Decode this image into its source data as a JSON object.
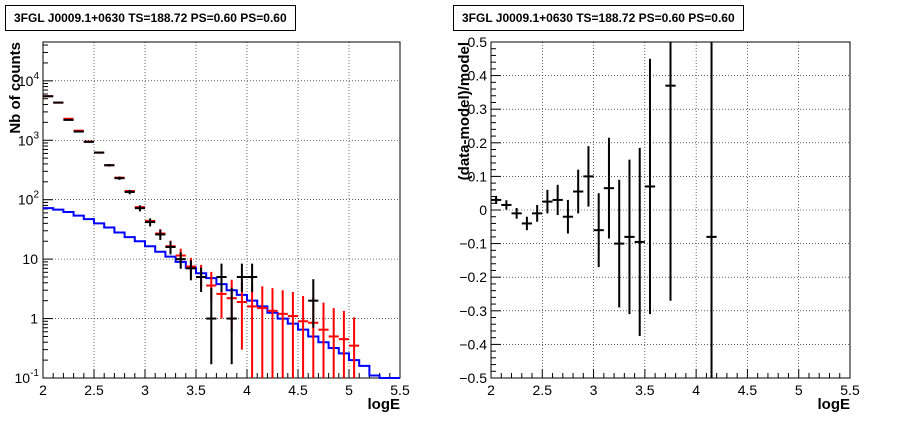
{
  "chart_data": [
    {
      "type": "line",
      "title": "3FGL J0009.1+0630 TS=188.72 PS=0.60 PS=0.60",
      "xlabel": "logE",
      "ylabel": "Nb of counts",
      "xlim": [
        2,
        5.5
      ],
      "ylim": [
        0.1,
        45000
      ],
      "yscale": "log",
      "grid": true,
      "xticks": [
        "2",
        "2.5",
        "3",
        "3.5",
        "4",
        "4.5",
        "5",
        "5.5"
      ],
      "yticks": [
        "10^-1",
        "1",
        "10",
        "10^2",
        "10^3",
        "10^4"
      ],
      "series": [
        {
          "kind": "red-model-histogram",
          "color": "#ff0000",
          "x": [
            2.05,
            2.15,
            2.25,
            2.35,
            2.45,
            2.55,
            2.65,
            2.75,
            2.85,
            2.95,
            3.05,
            3.15,
            3.25,
            3.35,
            3.45,
            3.55,
            3.65,
            3.75,
            3.85,
            3.95,
            4.05,
            4.15,
            4.25,
            4.35,
            4.45,
            4.55,
            4.65,
            4.75,
            4.85,
            4.95,
            5.05
          ],
          "y": [
            5500,
            4300,
            2300,
            1450,
            950,
            620,
            380,
            235,
            140,
            75,
            44,
            27,
            16.5,
            11.5,
            7.5,
            5.0,
            3.6,
            2.6,
            2.2,
            1.9,
            1.6,
            1.5,
            1.35,
            1.2,
            1.1,
            0.9,
            0.85,
            0.65,
            0.5,
            0.45,
            0.35
          ],
          "err_low": [
            null,
            null,
            null,
            null,
            null,
            null,
            null,
            null,
            null,
            null,
            null,
            3,
            2.5,
            2.3,
            2,
            1.8,
            1.6,
            1.6,
            1.6,
            1.6,
            1.5,
            1.45,
            1.35,
            1.2,
            1.1,
            0.9,
            0.85,
            0.65,
            0.5,
            0.45,
            0.35
          ],
          "err_high": [
            null,
            null,
            null,
            null,
            null,
            null,
            null,
            null,
            null,
            null,
            null,
            5,
            4,
            3.5,
            3,
            3,
            2.5,
            2.5,
            2.3,
            2.2,
            2.1,
            2,
            1.9,
            1.8,
            1.7,
            1.5,
            1.4,
            1.2,
            1.0,
            0.9,
            0.7
          ]
        },
        {
          "kind": "blue-model-histogram",
          "color": "#0000ff",
          "x": [
            2.05,
            2.15,
            2.25,
            2.35,
            2.45,
            2.55,
            2.65,
            2.75,
            2.85,
            2.95,
            3.05,
            3.15,
            3.25,
            3.35,
            3.45,
            3.55,
            3.65,
            3.75,
            3.85,
            3.95,
            4.05,
            4.15,
            4.25,
            4.35,
            4.45,
            4.55,
            4.65,
            4.75,
            4.85,
            4.95,
            5.05,
            5.15,
            5.25,
            5.35,
            5.45
          ],
          "y": [
            72,
            68,
            62,
            54,
            47,
            40,
            34,
            28,
            23.5,
            20,
            16.5,
            13.3,
            11,
            9,
            7.2,
            5.8,
            4.8,
            3.8,
            3.0,
            2.5,
            2.0,
            1.6,
            1.25,
            1.0,
            0.82,
            0.65,
            0.5,
            0.4,
            0.32,
            0.26,
            0.2,
            0.16,
            0.11,
            0.1,
            0.1
          ]
        },
        {
          "kind": "data-points",
          "color": "#000000",
          "x": [
            2.05,
            2.15,
            2.25,
            2.35,
            2.45,
            2.55,
            2.65,
            2.75,
            2.85,
            2.95,
            3.05,
            3.15,
            3.25,
            3.35,
            3.45,
            3.55,
            3.65,
            3.75,
            3.85,
            3.95,
            4.05,
            4.65
          ],
          "y": [
            5500,
            4300,
            2200,
            1400,
            940,
            620,
            380,
            230,
            135,
            72,
            42,
            26,
            16,
            10,
            7,
            5,
            1,
            5,
            1,
            5,
            5,
            2
          ],
          "err_low": [
            70,
            60,
            45,
            38,
            30,
            25,
            19,
            15,
            11.5,
            8.5,
            6.5,
            5,
            4,
            3.1,
            2.6,
            2.2,
            0.83,
            2.2,
            0.83,
            2.2,
            2.2,
            1.3
          ],
          "err_high": [
            70,
            60,
            45,
            38,
            30,
            25,
            19,
            15,
            11.5,
            8.5,
            6.5,
            5,
            4,
            3.1,
            2.6,
            2.2,
            2.3,
            3.4,
            2.3,
            3.4,
            3.4,
            2.6
          ]
        }
      ]
    },
    {
      "type": "scatter",
      "title": "3FGL J0009.1+0630 TS=188.72 PS=0.60 PS=0.60",
      "xlabel": "logE",
      "ylabel": "(data-model)/model",
      "xlim": [
        2,
        5.5
      ],
      "ylim": [
        -0.5,
        0.5
      ],
      "grid": true,
      "xticks": [
        "2",
        "2.5",
        "3",
        "3.5",
        "4",
        "4.5",
        "5",
        "5.5"
      ],
      "yticks": [
        "−0.5",
        "−0.4",
        "−0.3",
        "−0.2",
        "−0.1",
        "0",
        "0.1",
        "0.2",
        "0.3",
        "0.4",
        "0.5"
      ],
      "points": [
        {
          "x": 2.05,
          "y": 0.03,
          "err": 0.012
        },
        {
          "x": 2.15,
          "y": 0.015,
          "err": 0.014
        },
        {
          "x": 2.25,
          "y": -0.01,
          "err": 0.016
        },
        {
          "x": 2.35,
          "y": -0.04,
          "err": 0.02
        },
        {
          "x": 2.45,
          "y": -0.01,
          "err": 0.025
        },
        {
          "x": 2.55,
          "y": 0.025,
          "err": 0.035
        },
        {
          "x": 2.65,
          "y": 0.03,
          "err": 0.045
        },
        {
          "x": 2.75,
          "y": -0.02,
          "err": 0.05
        },
        {
          "x": 2.85,
          "y": 0.055,
          "err": 0.065
        },
        {
          "x": 2.95,
          "y": 0.1,
          "err": 0.09
        },
        {
          "x": 3.05,
          "y": -0.06,
          "err": 0.11
        },
        {
          "x": 3.15,
          "y": 0.065,
          "err": 0.15
        },
        {
          "x": 3.25,
          "y": -0.1,
          "err": 0.19
        },
        {
          "x": 3.35,
          "y": -0.08,
          "err": 0.23
        },
        {
          "x": 3.45,
          "y": -0.095,
          "err": 0.28
        },
        {
          "x": 3.55,
          "y": 0.07,
          "err": 0.38
        },
        {
          "x": 3.75,
          "y": 0.37,
          "err": 0.64
        },
        {
          "x": 4.15,
          "y": -0.08,
          "err": 1.0
        }
      ]
    }
  ]
}
